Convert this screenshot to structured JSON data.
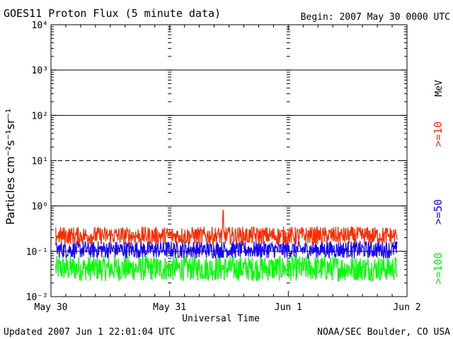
{
  "chart_data": {
    "type": "line",
    "title": "GOES11 Proton Flux (5 minute data)",
    "begin_label": "Begin: 2007 May 30 0000 UTC",
    "xlabel": "Universal Time",
    "ylabel": "Particles cm⁻²s⁻¹sr⁻¹",
    "y_scale": "log",
    "ylim": [
      0.01,
      10000
    ],
    "y_ticks": [
      "10⁻²",
      "10⁻¹",
      "10⁰",
      "10¹",
      "10²",
      "10³",
      "10⁴"
    ],
    "x_range_days": [
      "2007-05-30",
      "2007-06-02"
    ],
    "x_ticks": [
      "May 30",
      "May 31",
      "Jun 1",
      "Jun 2"
    ],
    "threshold_line": 10,
    "unit_label": "MeV",
    "series": [
      {
        "name": ">=10",
        "color": "#ff2a00",
        "typical_range": [
          0.14,
          0.35
        ],
        "peak": 0.8
      },
      {
        "name": ">=50",
        "color": "#1400ff",
        "typical_range": [
          0.07,
          0.17
        ]
      },
      {
        "name": ">=100",
        "color": "#00ff00",
        "typical_range": [
          0.022,
          0.08
        ]
      }
    ],
    "data_end": "2007-06-01 22:01"
  },
  "footer": {
    "updated": "Updated 2007 Jun  1 22:01:04 UTC",
    "credit": "NOAA/SEC Boulder, CO USA"
  }
}
